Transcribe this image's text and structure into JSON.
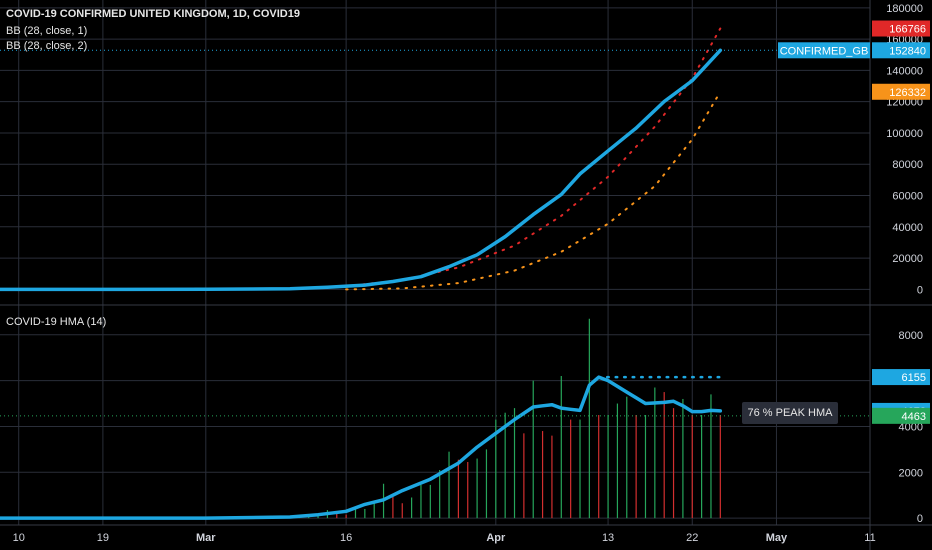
{
  "header": {
    "title": "COVID-19 CONFIRMED UNITED KINGDOM, 1D, COVID19",
    "bb1": "BB (28, close, 1)",
    "bb2": "BB (28, close, 2)",
    "lower_title": "COVID-19  HMA (14)"
  },
  "colors": {
    "background": "#000000",
    "grid": "#2a2e39",
    "main_line": "#1ea7e1",
    "bb_upper": "#e02828",
    "bb_lower": "#f7931a",
    "bar_up": "#26a65b",
    "bar_down": "#d32f2f",
    "tag_red": "#e02828",
    "tag_blue": "#1ea7e1",
    "tag_orange": "#f7931a",
    "tag_green": "#26a65b"
  },
  "chart_data": [
    {
      "type": "line",
      "title": "COVID-19 CONFIRMED UNITED KINGDOM, 1D, COVID19",
      "x_axis": {
        "start": "2020-02-08",
        "end": "2020-05-11",
        "tick_labels": [
          {
            "date": "2020-02-10",
            "label": "10"
          },
          {
            "date": "2020-02-19",
            "label": "19"
          },
          {
            "date": "2020-03-01",
            "label": "Mar"
          },
          {
            "date": "2020-03-16",
            "label": "16"
          },
          {
            "date": "2020-04-01",
            "label": "Apr"
          },
          {
            "date": "2020-04-13",
            "label": "13"
          },
          {
            "date": "2020-04-22",
            "label": "22"
          },
          {
            "date": "2020-05-01",
            "label": "May"
          },
          {
            "date": "2020-05-11",
            "label": "11"
          }
        ]
      },
      "y_axis": {
        "min": -10000,
        "max": 185000,
        "ticks": [
          0,
          20000,
          40000,
          60000,
          80000,
          100000,
          120000,
          140000,
          160000,
          180000
        ],
        "position": "right"
      },
      "series": [
        {
          "name": "CONFIRMED_GB",
          "style": "solid",
          "x": [
            "2020-02-01",
            "2020-02-15",
            "2020-03-01",
            "2020-03-10",
            "2020-03-14",
            "2020-03-18",
            "2020-03-21",
            "2020-03-24",
            "2020-03-27",
            "2020-03-30",
            "2020-04-02",
            "2020-04-05",
            "2020-04-08",
            "2020-04-10",
            "2020-04-13",
            "2020-04-16",
            "2020-04-19",
            "2020-04-22",
            "2020-04-25"
          ],
          "values": [
            0,
            0,
            35,
            400,
            1300,
            2700,
            5000,
            8100,
            14500,
            22100,
            33700,
            47800,
            60700,
            73800,
            88600,
            103100,
            120100,
            133500,
            152840
          ]
        },
        {
          "name": "BB upper",
          "style": "dotted",
          "x": [
            "2020-03-16",
            "2020-03-22",
            "2020-03-28",
            "2020-04-03",
            "2020-04-08",
            "2020-04-13",
            "2020-04-18",
            "2020-04-22",
            "2020-04-25"
          ],
          "values": [
            2000,
            6000,
            14000,
            28000,
            47000,
            72000,
            104000,
            135000,
            166766
          ]
        },
        {
          "name": "BB lower",
          "style": "dotted",
          "x": [
            "2020-03-16",
            "2020-03-22",
            "2020-03-28",
            "2020-04-03",
            "2020-04-08",
            "2020-04-13",
            "2020-04-18",
            "2020-04-22",
            "2020-04-25"
          ],
          "values": [
            0,
            600,
            4000,
            12000,
            24000,
            42000,
            66000,
            96000,
            126332
          ]
        }
      ],
      "price_tags": [
        {
          "value": 166766,
          "label": "166766",
          "color": "#e02828"
        },
        {
          "value": 152840,
          "label": "152840",
          "color": "#1ea7e1",
          "name": "CONFIRMED_GB"
        },
        {
          "value": 126332,
          "label": "126332",
          "color": "#f7931a"
        }
      ]
    },
    {
      "type": "bar",
      "title": "COVID-19  HMA (14)",
      "y_axis": {
        "min": -300,
        "max": 9300,
        "ticks": [
          0,
          2000,
          4000,
          6000,
          8000
        ],
        "position": "right"
      },
      "bars": {
        "x": [
          "2020-03-08",
          "2020-03-09",
          "2020-03-10",
          "2020-03-11",
          "2020-03-12",
          "2020-03-13",
          "2020-03-14",
          "2020-03-15",
          "2020-03-16",
          "2020-03-17",
          "2020-03-18",
          "2020-03-19",
          "2020-03-20",
          "2020-03-21",
          "2020-03-22",
          "2020-03-23",
          "2020-03-24",
          "2020-03-25",
          "2020-03-26",
          "2020-03-27",
          "2020-03-28",
          "2020-03-29",
          "2020-03-30",
          "2020-03-31",
          "2020-04-01",
          "2020-04-02",
          "2020-04-03",
          "2020-04-04",
          "2020-04-05",
          "2020-04-06",
          "2020-04-07",
          "2020-04-08",
          "2020-04-09",
          "2020-04-10",
          "2020-04-11",
          "2020-04-12",
          "2020-04-13",
          "2020-04-14",
          "2020-04-15",
          "2020-04-16",
          "2020-04-17",
          "2020-04-18",
          "2020-04-19",
          "2020-04-20",
          "2020-04-21",
          "2020-04-22",
          "2020-04-23",
          "2020-04-24",
          "2020-04-25"
        ],
        "values": [
          60,
          40,
          100,
          100,
          140,
          210,
          350,
          250,
          150,
          400,
          400,
          650,
          1500,
          1000,
          650,
          900,
          1450,
          1450,
          2100,
          2900,
          2550,
          2450,
          2600,
          3000,
          4300,
          4600,
          4800,
          3700,
          6000,
          3800,
          3600,
          6200,
          4300,
          4300,
          8700,
          4500,
          4500,
          5000,
          5300,
          4500,
          4500,
          5700,
          5500,
          4800,
          5200,
          4500,
          4500,
          5400,
          4500
        ],
        "direction": [
          "up",
          "down",
          "up",
          "up",
          "up",
          "up",
          "up",
          "down",
          "down",
          "up",
          "up",
          "up",
          "up",
          "down",
          "down",
          "up",
          "up",
          "up",
          "up",
          "up",
          "down",
          "down",
          "up",
          "up",
          "up",
          "up",
          "up",
          "down",
          "up",
          "down",
          "down",
          "up",
          "down",
          "up",
          "up",
          "down",
          "up",
          "up",
          "up",
          "down",
          "up",
          "up",
          "down",
          "down",
          "up",
          "down",
          "up",
          "up",
          "down"
        ]
      },
      "series": [
        {
          "name": "HMA",
          "style": "solid",
          "x": [
            "2020-02-08",
            "2020-03-01",
            "2020-03-10",
            "2020-03-13",
            "2020-03-16",
            "2020-03-18",
            "2020-03-20",
            "2020-03-22",
            "2020-03-25",
            "2020-03-28",
            "2020-03-30",
            "2020-04-01",
            "2020-04-03",
            "2020-04-05",
            "2020-04-06",
            "2020-04-07",
            "2020-04-08",
            "2020-04-09",
            "2020-04-10",
            "2020-04-11",
            "2020-04-12",
            "2020-04-13",
            "2020-04-15",
            "2020-04-17",
            "2020-04-19",
            "2020-04-20",
            "2020-04-21",
            "2020-04-22",
            "2020-04-23",
            "2020-04-24",
            "2020-04-25"
          ],
          "values": [
            0,
            0,
            50,
            150,
            300,
            600,
            800,
            1200,
            1700,
            2400,
            3100,
            3700,
            4300,
            4850,
            4900,
            4950,
            4800,
            4750,
            4700,
            5800,
            6150,
            6000,
            5500,
            5000,
            5050,
            5100,
            4900,
            4650,
            4650,
            4700,
            4678
          ]
        },
        {
          "name": "Peak",
          "style": "dotted",
          "x": [
            "2020-04-12",
            "2020-04-25"
          ],
          "values": [
            6155,
            6155
          ]
        }
      ],
      "price_tags": [
        {
          "value": 6155,
          "label": "6155",
          "color": "#1ea7e1"
        },
        {
          "value": 4678,
          "label": "4678",
          "color": "#1ea7e1"
        },
        {
          "value": 4463,
          "label": "4463",
          "color": "#26a65b"
        }
      ],
      "annotation": "76 % PEAK HMA"
    }
  ]
}
